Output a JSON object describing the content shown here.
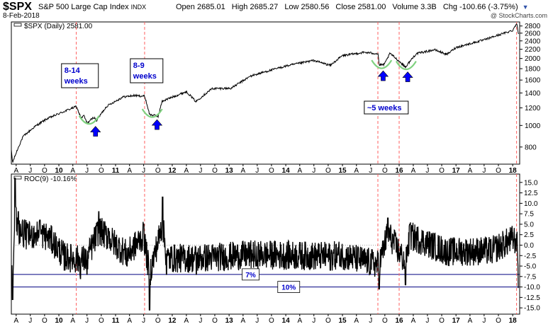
{
  "header": {
    "symbol": "$SPX",
    "description": "S&P 500 Large Cap Index",
    "exchange": "INDX",
    "date": "8-Feb-2018",
    "open": "Open 2685.01",
    "high": "High 2685.27",
    "low": "Low 2580.56",
    "close": "Close 2581.00",
    "volume": "Volume 3.3B",
    "change": "Chg -100.66 (-3.75%)",
    "change_arrow": "▼",
    "credit": "@ StockCharts.com"
  },
  "colors": {
    "price_line": "#000000",
    "marker_line": "#ff6060",
    "annotation_text": "#0000cc",
    "arrow": "#0000ff",
    "trough_curve": "#7fd17f",
    "hline": "#000080"
  },
  "chart_data": [
    {
      "type": "line",
      "legend": "$SPX (Daily) 2581.00",
      "scale": "log",
      "ylim": [
        670,
        2920
      ],
      "yticks": [
        800,
        1000,
        1200,
        1400,
        1600,
        1800,
        2000,
        2200,
        2400,
        2600,
        2800
      ],
      "x_range": [
        "2009-03-01",
        "2018-02-15"
      ],
      "series": [
        {
          "values": [
            [
              "2009-03-01",
              770
            ],
            [
              "2009-03-09",
              680
            ],
            [
              "2009-05-15",
              890
            ],
            [
              "2009-08-01",
              990
            ],
            [
              "2009-10-15",
              1070
            ],
            [
              "2010-01-15",
              1140
            ],
            [
              "2010-04-23",
              1217
            ],
            [
              "2010-05-25",
              1075
            ],
            [
              "2010-06-10",
              1110
            ],
            [
              "2010-07-02",
              1023
            ],
            [
              "2010-08-15",
              1090
            ],
            [
              "2010-08-31",
              1050
            ],
            [
              "2010-11-05",
              1220
            ],
            [
              "2011-02-18",
              1343
            ],
            [
              "2011-04-29",
              1363
            ],
            [
              "2011-07-07",
              1353
            ],
            [
              "2011-08-08",
              1120
            ],
            [
              "2011-10-03",
              1100
            ],
            [
              "2011-10-28",
              1285
            ],
            [
              "2012-04-02",
              1419
            ],
            [
              "2012-06-01",
              1280
            ],
            [
              "2012-09-14",
              1465
            ],
            [
              "2013-01-15",
              1470
            ],
            [
              "2013-05-21",
              1669
            ],
            [
              "2013-12-31",
              1848
            ],
            [
              "2014-06-30",
              1960
            ],
            [
              "2014-10-15",
              1862
            ],
            [
              "2014-12-31",
              2059
            ],
            [
              "2015-05-21",
              2131
            ],
            [
              "2015-08-18",
              2102
            ],
            [
              "2015-08-25",
              1867
            ],
            [
              "2015-09-28",
              1881
            ],
            [
              "2015-11-03",
              2109
            ],
            [
              "2016-02-11",
              1829
            ],
            [
              "2016-04-20",
              2102
            ],
            [
              "2016-08-15",
              2190
            ],
            [
              "2016-11-04",
              2085
            ],
            [
              "2016-12-31",
              2239
            ],
            [
              "2017-06-30",
              2423
            ],
            [
              "2017-12-31",
              2673
            ],
            [
              "2018-01-26",
              2873
            ],
            [
              "2018-02-08",
              2581
            ]
          ]
        }
      ]
    },
    {
      "type": "line",
      "legend": "ROC(9) -10.16%",
      "ylim": [
        -16.5,
        17
      ],
      "yticks": [
        15.0,
        12.5,
        10.0,
        7.5,
        5.0,
        2.5,
        0.0,
        -2.5,
        -5.0,
        -7.5,
        -10.0,
        -12.5,
        -15.0
      ],
      "x_range": [
        "2009-03-01",
        "2018-02-15"
      ],
      "hlines": [
        -7,
        -10
      ],
      "series": [
        {
          "values": [
            [
              "2009-03-01",
              -9
            ],
            [
              "2009-03-09",
              -13
            ],
            [
              "2009-03-25",
              16
            ],
            [
              "2009-04-15",
              8
            ],
            [
              "2009-06-15",
              5
            ],
            [
              "2009-09-01",
              6
            ],
            [
              "2009-11-01",
              4
            ],
            [
              "2010-02-05",
              -6
            ],
            [
              "2010-05-20",
              -8
            ],
            [
              "2010-07-01",
              -7
            ],
            [
              "2010-09-15",
              8
            ],
            [
              "2010-11-15",
              4
            ],
            [
              "2011-03-16",
              -5
            ],
            [
              "2011-07-01",
              5
            ],
            [
              "2011-08-08",
              -15.5
            ],
            [
              "2011-10-31",
              11.5
            ],
            [
              "2011-11-25",
              -7
            ],
            [
              "2012-06-04",
              -7
            ],
            [
              "2013-06-24",
              -5
            ],
            [
              "2014-10-15",
              -6
            ],
            [
              "2014-12-16",
              -5
            ],
            [
              "2015-08-25",
              -10.5
            ],
            [
              "2015-10-20",
              6.5
            ],
            [
              "2016-02-11",
              -9.5
            ],
            [
              "2016-03-10",
              5
            ],
            [
              "2016-11-04",
              -3.5
            ],
            [
              "2017-08-18",
              -3
            ],
            [
              "2017-12-31",
              3
            ],
            [
              "2018-01-26",
              2.5
            ],
            [
              "2018-02-08",
              -10.16
            ]
          ]
        }
      ]
    }
  ],
  "markers": [
    "2010-04-23",
    "2011-07-07",
    "2015-08-17",
    "2016-01-01",
    "2018-01-26"
  ],
  "annotations": [
    {
      "label_line1": "8-14",
      "label_line2": "weeks",
      "date": "2010-04-01"
    },
    {
      "label_line1": "8-9",
      "label_line2": "weeks",
      "date": "2011-07-20"
    },
    {
      "label_line1": "~5 weeks",
      "label_line2": "",
      "date": "2015-10-10"
    }
  ],
  "troughs": [
    {
      "date": "2010-07-15",
      "value": 1035,
      "arrow_date": "2010-08-25"
    },
    {
      "date": "2011-08-25",
      "value": 1110,
      "arrow_date": "2011-09-25"
    },
    {
      "date": "2015-09-10",
      "value": 1840,
      "arrow_date": "2015-09-20"
    },
    {
      "date": "2016-02-15",
      "value": 1820,
      "arrow_date": "2016-02-25"
    }
  ],
  "hline_labels": [
    {
      "label": "7%",
      "value": -7,
      "date": "2013-05-20"
    },
    {
      "label": "10%",
      "value": -10,
      "date": "2014-01-20"
    }
  ],
  "x_axis": {
    "ticks": [
      [
        "2009-04-01",
        "A"
      ],
      [
        "2009-07-01",
        "J"
      ],
      [
        "2009-10-01",
        "O"
      ],
      [
        "2010-01-01",
        "10"
      ],
      [
        "2010-04-01",
        "A"
      ],
      [
        "2010-07-01",
        "J"
      ],
      [
        "2010-10-01",
        "O"
      ],
      [
        "2011-01-01",
        "11"
      ],
      [
        "2011-04-01",
        "A"
      ],
      [
        "2011-07-01",
        "J"
      ],
      [
        "2011-10-01",
        "O"
      ],
      [
        "2012-01-01",
        "12"
      ],
      [
        "2012-04-01",
        "A"
      ],
      [
        "2012-07-01",
        "J"
      ],
      [
        "2012-10-01",
        "O"
      ],
      [
        "2013-01-01",
        "13"
      ],
      [
        "2013-04-01",
        "A"
      ],
      [
        "2013-07-01",
        "J"
      ],
      [
        "2013-10-01",
        "O"
      ],
      [
        "2014-01-01",
        "14"
      ],
      [
        "2014-04-01",
        "A"
      ],
      [
        "2014-07-01",
        "J"
      ],
      [
        "2014-10-01",
        "O"
      ],
      [
        "2015-01-01",
        "15"
      ],
      [
        "2015-04-01",
        "A"
      ],
      [
        "2015-07-01",
        "J"
      ],
      [
        "2015-10-01",
        "O"
      ],
      [
        "2016-01-01",
        "16"
      ],
      [
        "2016-04-01",
        "A"
      ],
      [
        "2016-07-01",
        "J"
      ],
      [
        "2016-10-01",
        "O"
      ],
      [
        "2017-01-01",
        "17"
      ],
      [
        "2017-04-01",
        "A"
      ],
      [
        "2017-07-01",
        "J"
      ],
      [
        "2017-10-01",
        "O"
      ],
      [
        "2018-01-01",
        "18"
      ]
    ]
  }
}
